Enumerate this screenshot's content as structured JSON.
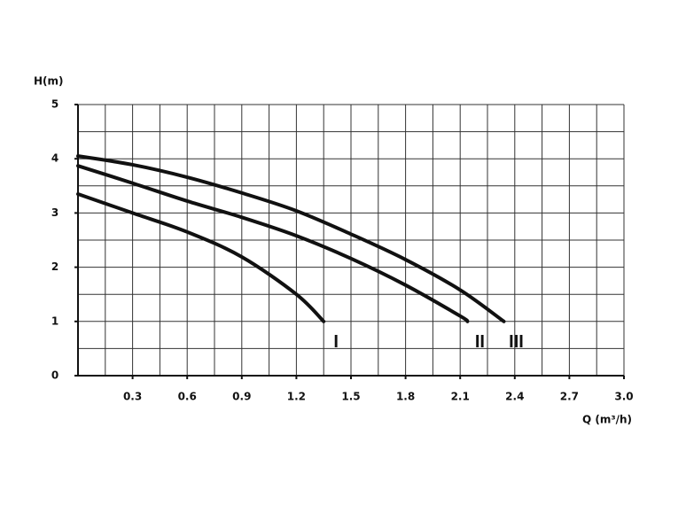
{
  "chart_data": {
    "type": "line",
    "xlabel": "Q (m³/h)",
    "ylabel": "H(m)",
    "xlim": [
      0,
      3
    ],
    "ylim": [
      0,
      5
    ],
    "xticks": [
      0.3,
      0.6,
      0.9,
      1.2,
      1.5,
      1.8,
      2.1,
      2.4,
      2.7,
      {
        "value": 3,
        "label": "3.0"
      }
    ],
    "yticks": [
      0,
      1,
      2,
      3,
      4,
      5
    ],
    "xgrid": [
      0.15,
      0.3,
      0.45,
      0.6,
      0.75,
      0.9,
      1.05,
      1.2,
      1.35,
      1.5,
      1.65,
      1.8,
      1.95,
      2.1,
      2.25,
      2.4,
      2.55,
      2.7,
      2.85,
      3
    ],
    "ygrid": [
      0.5,
      1,
      1.5,
      2,
      2.5,
      3,
      3.5,
      4,
      4.5,
      5
    ],
    "grid": true,
    "series": [
      {
        "name": "I",
        "color": "#111111",
        "x": [
          0,
          0.3,
          0.6,
          0.9,
          1.2,
          1.35
        ],
        "values": [
          3.35,
          3.0,
          2.65,
          2.19,
          1.5,
          1.0
        ]
      },
      {
        "name": "II",
        "color": "#111111",
        "x": [
          0,
          0.3,
          0.6,
          0.9,
          1.2,
          1.5,
          1.8,
          2.1,
          2.14
        ],
        "values": [
          3.87,
          3.55,
          3.22,
          2.92,
          2.58,
          2.16,
          1.67,
          1.1,
          1.0
        ]
      },
      {
        "name": "III",
        "color": "#111111",
        "x": [
          0,
          0.3,
          0.6,
          0.9,
          1.2,
          1.5,
          1.8,
          2.1,
          2.34
        ],
        "values": [
          4.05,
          3.89,
          3.66,
          3.37,
          3.04,
          2.61,
          2.14,
          1.58,
          1.0
        ]
      }
    ]
  }
}
